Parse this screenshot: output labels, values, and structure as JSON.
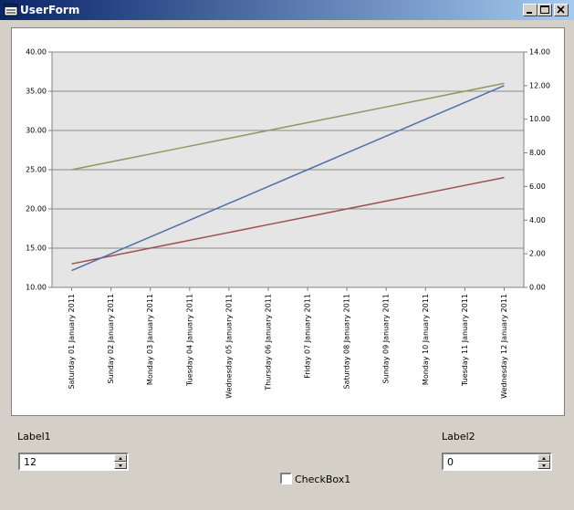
{
  "form": {
    "title": "UserForm",
    "label1": "Label1",
    "spin1_value": 12,
    "label2": "Label2",
    "spin2_value": 0,
    "checkbox": "CheckBox1"
  },
  "chart_data": {
    "type": "line",
    "categories": [
      "Saturday 01 January 2011",
      "Sunday 02 January 2011",
      "Monday 03 January 2011",
      "Tuesday 04 January 2011",
      "Wednesday 05 January 2011",
      "Thursday 06 January 2011",
      "Friday 07 January 2011",
      "Saturday 08 January 2011",
      "Sunday 09 January 2011",
      "Monday 10 January 2011",
      "Tuesday 11 January 2011",
      "Wednesday 12 January 2011"
    ],
    "series": [
      {
        "color": "#8b9a5e",
        "values": [
          25,
          26,
          27,
          28,
          29,
          30,
          31,
          32,
          33,
          34,
          35,
          36
        ]
      },
      {
        "color": "#a04f4d",
        "values": [
          13,
          14,
          15,
          16,
          17,
          18,
          19,
          20,
          21,
          22,
          23,
          24
        ]
      },
      {
        "color": "#4d70a6",
        "axis": "y2",
        "values": [
          1,
          2,
          3,
          4,
          5,
          6,
          7,
          8,
          9,
          10,
          11,
          12
        ]
      }
    ],
    "ylim": [
      10,
      40
    ],
    "yticks": [
      {
        "value": 10,
        "label": "10.00"
      },
      {
        "value": 15,
        "label": "15.00"
      },
      {
        "value": 20,
        "label": "20.00"
      },
      {
        "value": 25,
        "label": "25.00"
      },
      {
        "value": 30,
        "label": "30.00"
      },
      {
        "value": 35,
        "label": "35.00"
      },
      {
        "value": 40,
        "label": "40.00"
      }
    ],
    "y2lim": [
      0,
      14
    ],
    "y2ticks": [
      {
        "value": 0,
        "label": "0.00"
      },
      {
        "value": 2,
        "label": "2.00"
      },
      {
        "value": 4,
        "label": "4.00"
      },
      {
        "value": 6,
        "label": "6.00"
      },
      {
        "value": 8,
        "label": "8.00"
      },
      {
        "value": 10,
        "label": "10.00"
      },
      {
        "value": 12,
        "label": "12.00"
      },
      {
        "value": 14,
        "label": "14.00"
      }
    ],
    "grid": true
  }
}
